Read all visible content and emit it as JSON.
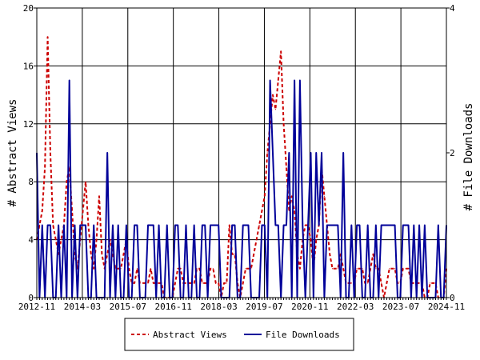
{
  "chart_data": {
    "type": "line",
    "ylabel": "# Abstract Views",
    "y2label": "# File Downloads",
    "ylim": [
      0,
      20
    ],
    "y2lim": [
      0,
      4
    ],
    "y_ticks": [
      0,
      4,
      8,
      12,
      16,
      20
    ],
    "y2_ticks": [
      0,
      2,
      4
    ],
    "x_tick_labels": [
      "2012-11",
      "2014-03",
      "2015-07",
      "2016-11",
      "2018-03",
      "2019-07",
      "2020-11",
      "2022-03",
      "2023-07",
      "2024-11"
    ],
    "x_count": 152,
    "grid": true,
    "legend_position": "bottom",
    "colors": {
      "views": "#cc0000",
      "downloads": "#000099"
    },
    "series": [
      {
        "name": "Abstract Views",
        "axis": "left",
        "values": [
          4,
          5,
          6,
          9,
          18,
          10,
          5,
          4,
          3,
          4,
          5,
          8,
          9,
          6,
          3,
          2,
          4,
          6,
          8,
          5,
          3,
          2,
          4,
          7,
          3,
          2,
          3,
          4,
          3,
          2,
          2,
          2,
          3,
          4,
          2,
          1,
          1,
          2,
          1,
          1,
          1,
          1,
          2,
          1,
          1,
          1,
          1,
          0,
          0,
          0,
          0,
          1,
          2,
          2,
          1,
          1,
          1,
          1,
          1,
          2,
          2,
          1,
          1,
          1,
          2,
          2,
          1,
          1,
          0,
          1,
          1,
          5,
          3,
          3,
          1,
          0,
          1,
          2,
          2,
          2,
          3,
          4,
          5,
          6,
          7,
          10,
          12,
          14,
          13,
          15,
          17,
          12,
          9,
          6,
          7,
          6,
          3,
          2,
          4,
          5,
          5,
          4,
          2,
          4,
          5,
          9,
          7,
          5,
          3,
          2,
          2,
          2,
          3,
          2,
          1,
          1,
          1,
          1,
          2,
          2,
          2,
          1,
          1,
          2,
          3,
          2,
          2,
          1,
          0,
          1,
          2,
          2,
          2,
          1,
          1,
          2,
          2,
          2,
          1,
          1,
          1,
          1,
          1,
          0,
          0,
          1,
          1,
          1,
          0,
          0,
          0,
          2
        ]
      },
      {
        "name": "File Downloads",
        "axis": "right",
        "values": [
          2,
          0,
          1,
          0,
          1,
          1,
          0,
          0,
          1,
          0,
          1,
          0,
          3,
          0,
          1,
          0,
          1,
          1,
          1,
          0,
          0,
          1,
          0,
          0,
          0,
          0,
          2,
          0,
          1,
          0,
          1,
          0,
          0,
          1,
          0,
          0,
          1,
          1,
          0,
          0,
          0,
          1,
          1,
          1,
          0,
          1,
          0,
          0,
          1,
          0,
          0,
          1,
          1,
          0,
          0,
          1,
          0,
          0,
          1,
          0,
          0,
          1,
          1,
          0,
          1,
          1,
          1,
          1,
          0,
          0,
          0,
          0,
          1,
          1,
          0,
          0,
          1,
          1,
          1,
          0,
          0,
          0,
          0,
          1,
          1,
          0,
          3,
          2,
          1,
          1,
          0,
          1,
          1,
          2,
          0,
          3,
          0,
          3,
          1,
          0,
          1,
          2,
          0,
          2,
          1,
          2,
          0,
          1,
          1,
          1,
          1,
          1,
          0,
          2,
          0,
          0,
          1,
          0,
          1,
          1,
          0,
          0,
          1,
          0,
          0,
          1,
          0,
          1,
          1,
          1,
          1,
          1,
          1,
          0,
          0,
          1,
          1,
          1,
          0,
          1,
          0,
          1,
          0,
          1,
          0,
          0,
          0,
          0,
          1,
          0,
          0,
          1
        ]
      }
    ]
  }
}
